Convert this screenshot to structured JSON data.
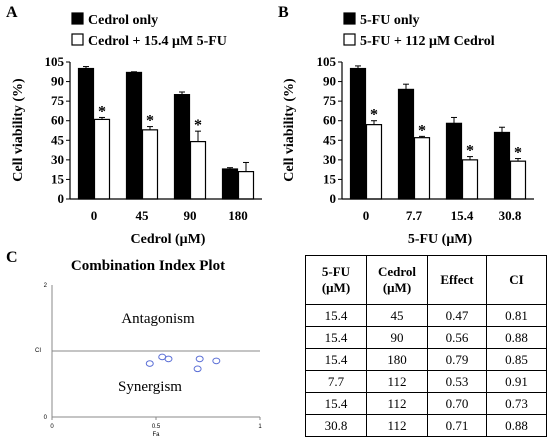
{
  "panels": {
    "a": "A",
    "b": "B",
    "c": "C"
  },
  "chart_data": [
    {
      "type": "bar",
      "panel": "A",
      "categories": [
        "0",
        "45",
        "90",
        "180"
      ],
      "xlabel": "Cedrol (μM)",
      "ylabel": "Cell viability (%)",
      "ylim": [
        0,
        105
      ],
      "yticks": [
        0,
        15,
        30,
        45,
        60,
        75,
        90,
        105
      ],
      "grid": false,
      "legend_position": "top-left",
      "series": [
        {
          "name": "Cedrol only",
          "color": "#000000",
          "values": [
            100,
            97,
            80,
            23
          ],
          "errors": [
            1.5,
            0.5,
            2,
            1
          ]
        },
        {
          "name": "Cedrol + 15.4 μM 5-FU",
          "color": "#ffffff",
          "values": [
            61,
            53,
            44,
            21
          ],
          "errors": [
            1.5,
            2.5,
            8,
            7
          ]
        }
      ],
      "annotations": [
        {
          "text": "*",
          "series": 1,
          "category": 0
        },
        {
          "text": "*",
          "series": 1,
          "category": 1
        },
        {
          "text": "*",
          "series": 1,
          "category": 2
        }
      ]
    },
    {
      "type": "bar",
      "panel": "B",
      "categories": [
        "0",
        "7.7",
        "15.4",
        "30.8"
      ],
      "xlabel": "5-FU (μM)",
      "ylabel": "Cell viability (%)",
      "ylim": [
        0,
        105
      ],
      "yticks": [
        0,
        15,
        30,
        45,
        60,
        75,
        90,
        105
      ],
      "grid": false,
      "legend_position": "top-left",
      "series": [
        {
          "name": "5-FU only",
          "color": "#000000",
          "values": [
            100,
            84,
            58,
            51
          ],
          "errors": [
            2,
            4,
            4.5,
            4
          ]
        },
        {
          "name": "5-FU + 112 μM Cedrol",
          "color": "#ffffff",
          "values": [
            57,
            47,
            30,
            29
          ],
          "errors": [
            3,
            1,
            2.5,
            2
          ]
        }
      ],
      "annotations": [
        {
          "text": "*",
          "series": 1,
          "category": 0
        },
        {
          "text": "*",
          "series": 1,
          "category": 1
        },
        {
          "text": "*",
          "series": 1,
          "category": 2
        },
        {
          "text": "*",
          "series": 1,
          "category": 3
        }
      ]
    },
    {
      "type": "scatter",
      "panel": "C",
      "title": "Combination Index Plot",
      "xlabel": "Fa",
      "ylabel": "CI",
      "xlim": [
        0,
        1
      ],
      "ylim": [
        0,
        2
      ],
      "xticks": [
        "0",
        "0.5",
        "1"
      ],
      "yticks": [
        "0",
        "2"
      ],
      "reference_line": 1,
      "regions": [
        "Antagonism",
        "Synergism"
      ],
      "marker": "open-circle",
      "marker_color": "#5b6fd6",
      "points": [
        {
          "x": 0.47,
          "y": 0.81
        },
        {
          "x": 0.56,
          "y": 0.88
        },
        {
          "x": 0.79,
          "y": 0.85
        },
        {
          "x": 0.53,
          "y": 0.91
        },
        {
          "x": 0.7,
          "y": 0.73
        },
        {
          "x": 0.71,
          "y": 0.88
        }
      ]
    },
    {
      "type": "table",
      "panel": "C",
      "columns": [
        "5-FU\n(μM)",
        "Cedrol\n(μM)",
        "Effect",
        "CI"
      ],
      "rows": [
        [
          "15.4",
          "45",
          "0.47",
          "0.81"
        ],
        [
          "15.4",
          "90",
          "0.56",
          "0.88"
        ],
        [
          "15.4",
          "180",
          "0.79",
          "0.85"
        ],
        [
          "7.7",
          "112",
          "0.53",
          "0.91"
        ],
        [
          "15.4",
          "112",
          "0.70",
          "0.73"
        ],
        [
          "30.8",
          "112",
          "0.71",
          "0.88"
        ]
      ]
    }
  ]
}
